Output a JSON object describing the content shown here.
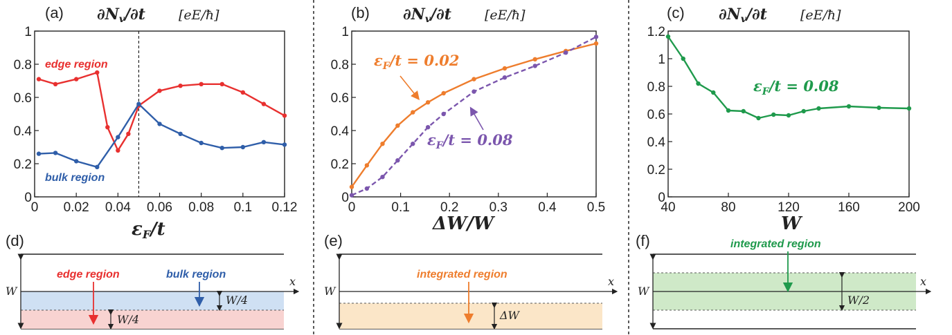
{
  "colors": {
    "red": "#e8302f",
    "blue": "#2f5ea9",
    "orange": "#ee7d2d",
    "purple": "#7b56ad",
    "green": "#1f9a4c",
    "blue_fill": "#cfe0f3",
    "red_fill": "#f8d3d1",
    "orange_fill": "#fbe6c8",
    "green_fill": "#cfe9c8"
  },
  "panels": {
    "a": {
      "label": "(a)",
      "title": "∂N",
      "title_sub": "v",
      "title_rest": "/∂t",
      "unit": "[eE/ħ]"
    },
    "b": {
      "label": "(b)",
      "title": "∂N",
      "title_sub": "v",
      "title_rest": "/∂t",
      "unit": "[eE/ħ]"
    },
    "c": {
      "label": "(c)",
      "title": "∂N",
      "title_sub": "v",
      "title_rest": "/∂t",
      "unit": "[eE/ħ]"
    },
    "d": {
      "label": "(d)",
      "edge_label": "edge region",
      "bulk_label": "bulk region",
      "w_label": "W",
      "x_label": "x",
      "w4_upper": "W/4",
      "w4_lower": "W/4"
    },
    "e": {
      "label": "(e)",
      "integrated_label": "integrated region",
      "w_label": "W",
      "x_label": "x",
      "dw_label": "ΔW"
    },
    "f": {
      "label": "(f)",
      "integrated_label": "integrated region",
      "w_label": "W",
      "x_label": "x",
      "w2_label": "W/2"
    }
  },
  "chart_data": [
    {
      "type": "line",
      "panel": "a",
      "xlabel": "εF/t",
      "xlim": [
        0,
        0.12
      ],
      "ylim": [
        0,
        1
      ],
      "xticks": [
        "0",
        "0.02",
        "0.04",
        "0.06",
        "0.08",
        "0.1",
        "0.12"
      ],
      "yticks": [
        "0",
        "0.2",
        "0.4",
        "0.6",
        "0.8",
        "1"
      ],
      "vline": 0.05,
      "series": [
        {
          "name": "edge region",
          "color": "#e8302f",
          "x": [
            0.002,
            0.01,
            0.02,
            0.03,
            0.035,
            0.04,
            0.045,
            0.05,
            0.06,
            0.07,
            0.08,
            0.09,
            0.1,
            0.11,
            0.12
          ],
          "y": [
            0.71,
            0.68,
            0.71,
            0.75,
            0.42,
            0.28,
            0.38,
            0.55,
            0.64,
            0.67,
            0.68,
            0.68,
            0.63,
            0.56,
            0.49
          ]
        },
        {
          "name": "bulk region",
          "color": "#2f5ea9",
          "x": [
            0.002,
            0.01,
            0.02,
            0.03,
            0.04,
            0.05,
            0.06,
            0.07,
            0.08,
            0.09,
            0.1,
            0.11,
            0.12
          ],
          "y": [
            0.26,
            0.265,
            0.215,
            0.18,
            0.36,
            0.56,
            0.44,
            0.38,
            0.325,
            0.295,
            0.3,
            0.33,
            0.315
          ]
        }
      ]
    },
    {
      "type": "line",
      "panel": "b",
      "xlabel": "ΔW/W",
      "xlim": [
        0,
        0.5
      ],
      "ylim": [
        0,
        1
      ],
      "xticks": [
        "0",
        "0.1",
        "0.2",
        "0.3",
        "0.4",
        "0.5"
      ],
      "yticks": [
        "0",
        "0.2",
        "0.4",
        "0.6",
        "0.8",
        "1"
      ],
      "series": [
        {
          "name": "εF/t = 0.02",
          "color": "#ee7d2d",
          "dashed": false,
          "x": [
            0.0,
            0.031,
            0.063,
            0.094,
            0.125,
            0.156,
            0.188,
            0.25,
            0.313,
            0.375,
            0.438,
            0.5
          ],
          "y": [
            0.06,
            0.19,
            0.32,
            0.43,
            0.51,
            0.57,
            0.625,
            0.71,
            0.775,
            0.83,
            0.88,
            0.925
          ]
        },
        {
          "name": "εF/t = 0.08",
          "color": "#7b56ad",
          "dashed": true,
          "x": [
            0.0,
            0.031,
            0.063,
            0.094,
            0.125,
            0.156,
            0.188,
            0.25,
            0.313,
            0.375,
            0.438,
            0.5
          ],
          "y": [
            0.01,
            0.05,
            0.12,
            0.22,
            0.32,
            0.42,
            0.5,
            0.635,
            0.72,
            0.79,
            0.87,
            0.965
          ]
        }
      ]
    },
    {
      "type": "line",
      "panel": "c",
      "xlabel": "W",
      "xlim": [
        40,
        200
      ],
      "ylim": [
        0,
        1.2
      ],
      "xticks": [
        "40",
        "80",
        "120",
        "160",
        "200"
      ],
      "yticks": [
        "0",
        "0.2",
        "0.4",
        "0.6",
        "0.8",
        "1",
        "1.2"
      ],
      "series": [
        {
          "name": "εF/t = 0.08",
          "color": "#1f9a4c",
          "x": [
            40,
            50,
            60,
            70,
            80,
            90,
            100,
            110,
            120,
            130,
            140,
            160,
            180,
            200
          ],
          "y": [
            1.16,
            1.0,
            0.82,
            0.755,
            0.625,
            0.62,
            0.57,
            0.595,
            0.59,
            0.62,
            0.64,
            0.655,
            0.645,
            0.64
          ]
        }
      ]
    }
  ]
}
